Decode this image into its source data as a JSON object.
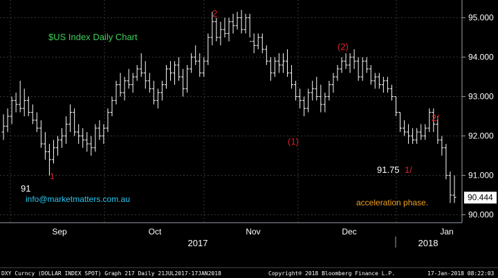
{
  "chart_data": {
    "type": "ohlc",
    "title": "$US Index Daily Chart",
    "ylim": [
      89.8,
      95.45
    ],
    "y_ticks": [
      "95.000",
      "94.000",
      "93.000",
      "92.000",
      "91.000",
      "90.000"
    ],
    "y_tick_values": [
      95,
      94,
      93,
      92,
      91,
      90
    ],
    "last_price": "90.444",
    "last_price_value": 90.444,
    "x_month_labels": [
      "Sep",
      "Oct",
      "Nov",
      "Dec",
      "Jan"
    ],
    "x_year_labels": [
      "2017",
      "2018"
    ],
    "series": [
      {
        "name": "DXY Curncy",
        "values": [
          [
            92.1,
            92.55,
            91.9,
            92.25
          ],
          [
            92.25,
            92.7,
            92.1,
            92.5
          ],
          [
            92.5,
            93.0,
            92.3,
            92.9
          ],
          [
            92.9,
            93.1,
            92.6,
            92.8
          ],
          [
            92.8,
            93.4,
            92.6,
            92.7
          ],
          [
            92.7,
            93.2,
            92.5,
            92.9
          ],
          [
            92.9,
            93.0,
            92.5,
            92.6
          ],
          [
            92.6,
            92.8,
            92.3,
            92.4
          ],
          [
            92.4,
            92.6,
            92.1,
            92.2
          ],
          [
            92.2,
            92.4,
            91.7,
            91.8
          ],
          [
            91.8,
            92.1,
            91.4,
            91.6
          ],
          [
            91.6,
            91.8,
            91.0,
            91.4
          ],
          [
            91.4,
            91.9,
            91.3,
            91.7
          ],
          [
            91.7,
            92.0,
            91.5,
            91.9
          ],
          [
            91.9,
            92.2,
            91.7,
            92.0
          ],
          [
            92.0,
            92.5,
            91.8,
            92.3
          ],
          [
            92.3,
            92.8,
            92.1,
            92.6
          ],
          [
            92.6,
            92.7,
            92.0,
            92.1
          ],
          [
            92.1,
            92.3,
            91.8,
            92.0
          ],
          [
            92.0,
            92.2,
            91.7,
            91.9
          ],
          [
            91.9,
            92.1,
            91.6,
            91.8
          ],
          [
            91.8,
            92.0,
            91.5,
            91.7
          ],
          [
            91.7,
            92.3,
            91.6,
            92.2
          ],
          [
            92.2,
            92.4,
            91.9,
            92.0
          ],
          [
            92.0,
            92.3,
            91.8,
            92.2
          ],
          [
            92.2,
            92.7,
            92.1,
            92.6
          ],
          [
            92.6,
            93.0,
            92.5,
            92.9
          ],
          [
            92.9,
            93.4,
            92.8,
            93.3
          ],
          [
            93.3,
            93.6,
            93.0,
            93.1
          ],
          [
            93.1,
            93.5,
            92.9,
            93.4
          ],
          [
            93.4,
            93.7,
            93.2,
            93.3
          ],
          [
            93.3,
            93.6,
            93.1,
            93.5
          ],
          [
            93.5,
            93.8,
            93.4,
            93.7
          ],
          [
            93.7,
            94.1,
            93.5,
            93.6
          ],
          [
            93.6,
            93.9,
            93.2,
            93.4
          ],
          [
            93.4,
            93.6,
            93.1,
            93.2
          ],
          [
            93.2,
            93.4,
            92.8,
            92.9
          ],
          [
            92.9,
            93.2,
            92.7,
            93.1
          ],
          [
            93.1,
            93.4,
            92.9,
            93.3
          ],
          [
            93.3,
            93.8,
            93.2,
            93.7
          ],
          [
            93.7,
            93.9,
            93.4,
            93.6
          ],
          [
            93.6,
            93.9,
            93.3,
            93.8
          ],
          [
            93.8,
            94.0,
            93.4,
            93.5
          ],
          [
            93.5,
            93.7,
            93.0,
            93.2
          ],
          [
            93.2,
            93.8,
            93.1,
            93.7
          ],
          [
            93.7,
            94.1,
            93.6,
            94.0
          ],
          [
            94.0,
            94.3,
            93.8,
            93.9
          ],
          [
            93.9,
            94.1,
            93.5,
            93.6
          ],
          [
            93.6,
            94.0,
            93.5,
            93.9
          ],
          [
            93.9,
            94.6,
            93.8,
            94.5
          ],
          [
            94.5,
            95.15,
            94.3,
            94.9
          ],
          [
            94.9,
            95.0,
            94.4,
            94.5
          ],
          [
            94.5,
            94.9,
            94.3,
            94.7
          ],
          [
            94.7,
            95.0,
            94.5,
            94.6
          ],
          [
            94.6,
            95.0,
            94.4,
            94.9
          ],
          [
            94.9,
            95.1,
            94.6,
            94.8
          ],
          [
            94.8,
            95.15,
            94.7,
            95.0
          ],
          [
            95.0,
            95.2,
            94.6,
            94.7
          ],
          [
            94.7,
            95.1,
            94.6,
            95.0
          ],
          [
            95.0,
            95.1,
            94.5,
            94.4
          ],
          [
            94.4,
            94.6,
            94.1,
            94.3
          ],
          [
            94.3,
            94.6,
            94.2,
            94.5
          ],
          [
            94.5,
            94.6,
            94.1,
            94.2
          ],
          [
            94.2,
            94.3,
            93.8,
            93.9
          ],
          [
            93.9,
            94.0,
            93.4,
            93.6
          ],
          [
            93.6,
            94.0,
            93.5,
            93.9
          ],
          [
            93.9,
            94.1,
            93.6,
            93.8
          ],
          [
            93.8,
            94.1,
            93.6,
            93.9
          ],
          [
            93.9,
            94.2,
            93.5,
            93.6
          ],
          [
            93.6,
            93.8,
            93.2,
            93.3
          ],
          [
            93.3,
            93.4,
            92.9,
            93.0
          ],
          [
            93.0,
            93.2,
            92.7,
            92.9
          ],
          [
            92.9,
            93.0,
            92.5,
            92.7
          ],
          [
            92.7,
            93.2,
            92.6,
            93.1
          ],
          [
            93.1,
            93.4,
            92.9,
            93.2
          ],
          [
            93.2,
            93.5,
            92.9,
            93.0
          ],
          [
            93.0,
            93.3,
            92.6,
            92.8
          ],
          [
            92.8,
            93.1,
            92.6,
            93.0
          ],
          [
            93.0,
            93.4,
            92.9,
            93.3
          ],
          [
            93.3,
            93.6,
            93.1,
            93.5
          ],
          [
            93.5,
            93.8,
            93.4,
            93.7
          ],
          [
            93.7,
            94.0,
            93.6,
            93.9
          ],
          [
            93.9,
            94.1,
            93.7,
            93.8
          ],
          [
            93.8,
            94.1,
            93.6,
            94.0
          ],
          [
            94.0,
            94.2,
            93.7,
            93.9
          ],
          [
            93.9,
            94.0,
            93.4,
            93.5
          ],
          [
            93.5,
            94.0,
            93.4,
            93.9
          ],
          [
            93.9,
            94.0,
            93.6,
            93.7
          ],
          [
            93.7,
            93.8,
            93.3,
            93.4
          ],
          [
            93.4,
            93.6,
            93.2,
            93.5
          ],
          [
            93.5,
            93.6,
            93.2,
            93.3
          ],
          [
            93.3,
            93.5,
            93.1,
            93.4
          ],
          [
            93.4,
            93.5,
            93.1,
            93.2
          ],
          [
            93.2,
            93.3,
            92.9,
            93.0
          ],
          [
            93.0,
            93.0,
            92.5,
            92.6
          ],
          [
            92.6,
            92.6,
            92.1,
            92.2
          ],
          [
            92.2,
            92.4,
            92.0,
            92.1
          ],
          [
            92.1,
            92.3,
            91.8,
            92.0
          ],
          [
            92.0,
            92.2,
            91.8,
            91.9
          ],
          [
            91.9,
            92.2,
            91.8,
            92.1
          ],
          [
            92.1,
            92.3,
            91.9,
            92.0
          ],
          [
            92.0,
            92.3,
            91.9,
            92.2
          ],
          [
            92.2,
            92.7,
            92.1,
            92.6
          ],
          [
            92.6,
            92.7,
            92.1,
            92.3
          ],
          [
            92.3,
            92.5,
            91.8,
            91.9
          ],
          [
            91.9,
            92.0,
            91.5,
            91.7
          ],
          [
            91.7,
            91.8,
            90.9,
            91.0
          ],
          [
            91.0,
            91.1,
            90.3,
            90.5
          ],
          [
            90.5,
            91.0,
            90.3,
            90.444
          ]
        ]
      }
    ],
    "annotations": {
      "title_color": "#3ecf5a",
      "wave_color": "#e0202a",
      "note_color": "#f0a020",
      "label_91": "91",
      "label_1": "1",
      "label_2": "2",
      "label_paren_2": "(2)",
      "label_paren_1": "(1)",
      "label_2slash": "2/",
      "label_9175": "91.75",
      "label_1slash": "1/",
      "label_accel": "acceleration phase.",
      "label_email": "info@marketmatters.com.au"
    }
  },
  "footer": {
    "left": "DXY Curncy (DOLLAR INDEX SPOT) Graph 217  Daily 21JUL2017-17JAN2018",
    "middle": "Copyright® 2018 Bloomberg Finance L.P.",
    "right": "17-Jan-2018 08:22:03"
  }
}
